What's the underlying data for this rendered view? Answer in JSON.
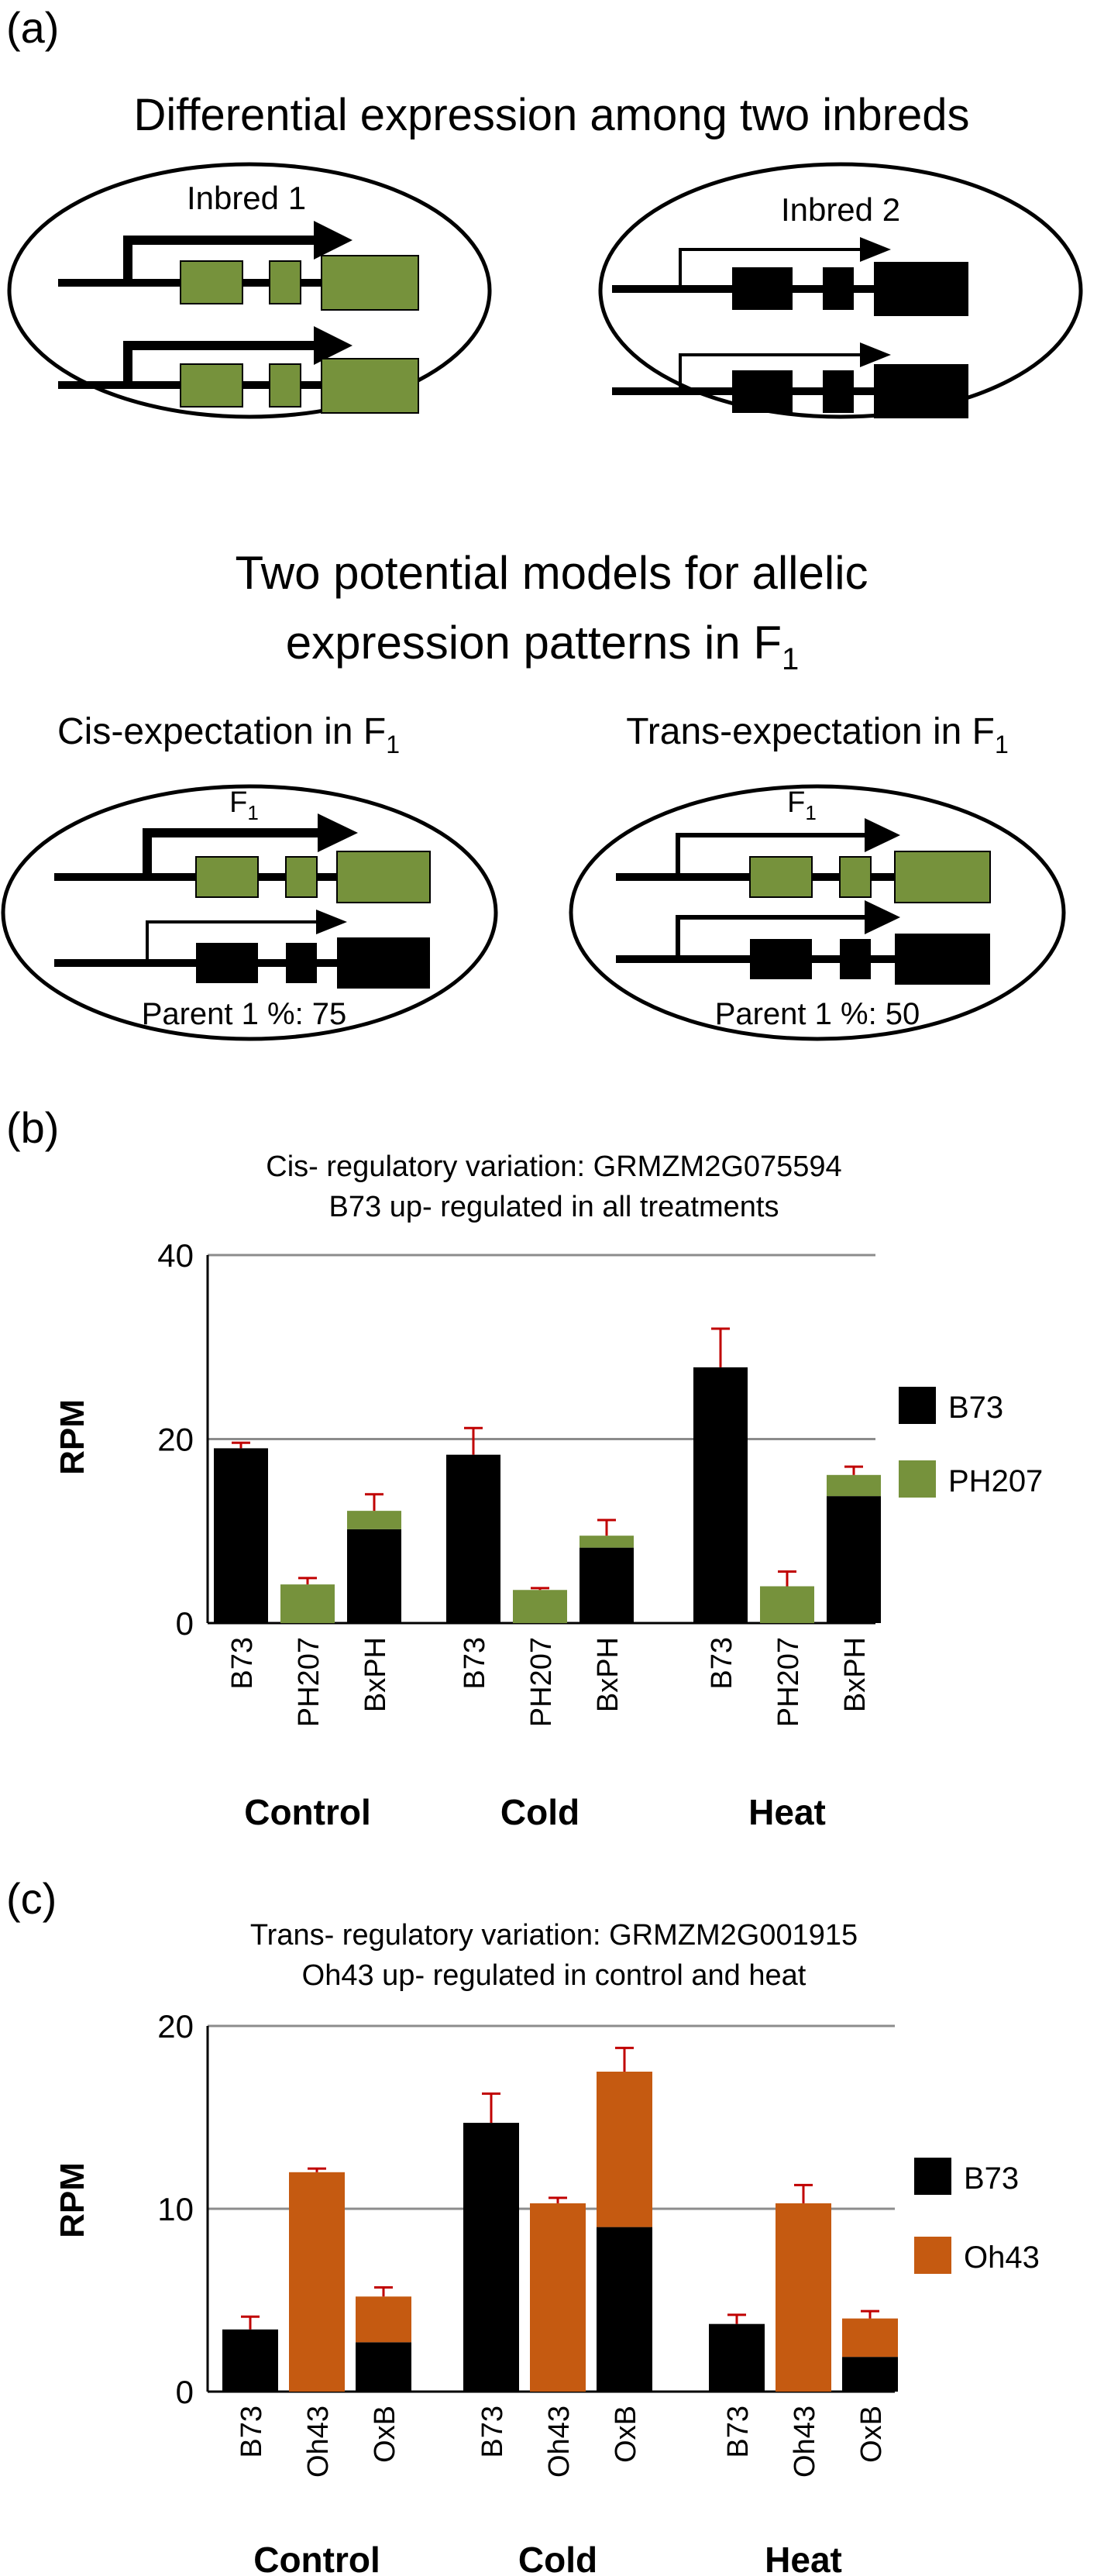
{
  "panel_a": {
    "label": "(a)",
    "title": "Differential expression among two inbreds",
    "inbred1_label": "Inbred 1",
    "inbred2_label": "Inbred 2",
    "models_title_line1": "Two potential models for allelic",
    "models_title_line2": "expression patterns in F",
    "models_title_sub": "1",
    "cis_label": "Cis-expectation in F",
    "cis_sub": "1",
    "trans_label": "Trans-expectation in F",
    "trans_sub": "1",
    "f1_label": "F",
    "f1_sub": "1",
    "cis_parent_label": "Parent 1 %: 75",
    "trans_parent_label": "Parent 1 %: 50",
    "colors": {
      "inbred1": "#76923c",
      "inbred2": "#000000"
    }
  },
  "panel_b": {
    "label": "(b)",
    "chart_data": {
      "type": "bar",
      "stacked": true,
      "title_line1": "Cis- regulatory variation: GRMZM2G075594",
      "title_line2": "B73 up- regulated in all treatments",
      "ylabel": "RPM",
      "ylim": [
        0,
        40
      ],
      "yticks": [
        0,
        20,
        40
      ],
      "gridlines": [
        20,
        40
      ],
      "groups": [
        "Control",
        "Cold",
        "Heat"
      ],
      "categories": [
        "B73",
        "PH207",
        "BxPH"
      ],
      "series": [
        {
          "name": "B73",
          "color": "#000000",
          "values": [
            [
              19,
              0,
              10.2
            ],
            [
              18.3,
              0,
              8.2
            ],
            [
              27.8,
              0,
              13.8
            ]
          ]
        },
        {
          "name": "PH207",
          "color": "#76923c",
          "values": [
            [
              0,
              4.2,
              2
            ],
            [
              0,
              3.6,
              1.3
            ],
            [
              0,
              4,
              2.3
            ]
          ]
        }
      ],
      "error_tops": [
        [
          19.6,
          4.9,
          14
        ],
        [
          21.2,
          3.8,
          11.2
        ],
        [
          32,
          5.6,
          17
        ]
      ],
      "legend_position": "right"
    }
  },
  "panel_c": {
    "label": "(c)",
    "chart_data": {
      "type": "bar",
      "stacked": true,
      "title_line1": "Trans- regulatory variation: GRMZM2G001915",
      "title_line2": "Oh43 up- regulated in control and heat",
      "ylabel": "RPM",
      "ylim": [
        0,
        20
      ],
      "yticks": [
        0,
        10,
        20
      ],
      "gridlines": [
        10,
        20
      ],
      "groups": [
        "Control",
        "Cold",
        "Heat"
      ],
      "categories": [
        "B73",
        "Oh43",
        "OxB"
      ],
      "series": [
        {
          "name": "B73",
          "color": "#000000",
          "values": [
            [
              3.4,
              0,
              2.7
            ],
            [
              14.7,
              0,
              9
            ],
            [
              3.7,
              0,
              1.9
            ]
          ]
        },
        {
          "name": "Oh43",
          "color": "#c55a11",
          "values": [
            [
              0,
              12,
              2.5
            ],
            [
              0,
              10.3,
              8.5
            ],
            [
              0,
              10.3,
              2.1
            ]
          ]
        }
      ],
      "error_tops": [
        [
          4.1,
          12.2,
          5.7
        ],
        [
          16.3,
          10.6,
          18.8
        ],
        [
          4.2,
          11.3,
          4.4
        ]
      ],
      "legend_position": "right"
    }
  }
}
